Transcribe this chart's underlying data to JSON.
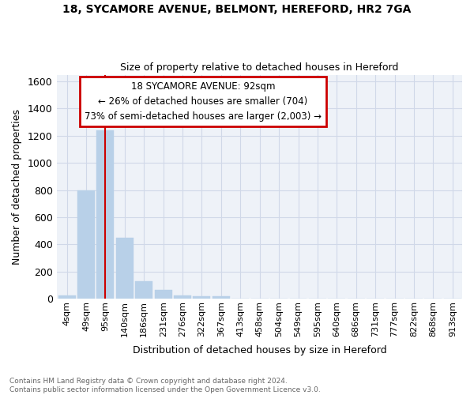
{
  "title_line1": "18, SYCAMORE AVENUE, BELMONT, HEREFORD, HR2 7GA",
  "title_line2": "Size of property relative to detached houses in Hereford",
  "xlabel": "Distribution of detached houses by size in Hereford",
  "ylabel": "Number of detached properties",
  "categories": [
    "4sqm",
    "49sqm",
    "95sqm",
    "140sqm",
    "186sqm",
    "231sqm",
    "276sqm",
    "322sqm",
    "367sqm",
    "413sqm",
    "458sqm",
    "504sqm",
    "549sqm",
    "595sqm",
    "640sqm",
    "686sqm",
    "731sqm",
    "777sqm",
    "822sqm",
    "868sqm",
    "913sqm"
  ],
  "values": [
    25,
    800,
    1240,
    450,
    130,
    65,
    25,
    20,
    20,
    0,
    0,
    0,
    0,
    0,
    0,
    0,
    0,
    0,
    0,
    0,
    0
  ],
  "bar_color": "#b8d0e8",
  "bar_edge_color": "#b8d0e8",
  "grid_color": "#d0d8e8",
  "background_color": "#eef2f8",
  "property_line_x": 1.97,
  "annotation_text": "18 SYCAMORE AVENUE: 92sqm\n← 26% of detached houses are smaller (704)\n73% of semi-detached houses are larger (2,003) →",
  "annotation_box_color": "#cc0000",
  "ylim": [
    0,
    1650
  ],
  "yticks": [
    0,
    200,
    400,
    600,
    800,
    1000,
    1200,
    1400,
    1600
  ],
  "footer_text": "Contains HM Land Registry data © Crown copyright and database right 2024.\nContains public sector information licensed under the Open Government Licence v3.0."
}
